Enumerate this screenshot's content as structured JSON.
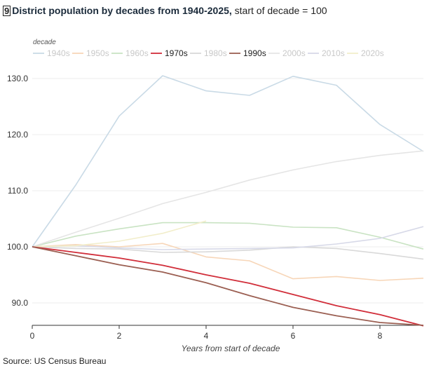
{
  "title": {
    "badge": "9",
    "bold": "District population by decades from 1940-2025,",
    "rest": " start of decade = 100"
  },
  "source": "Source: US Census Bureau",
  "chart_data": {
    "type": "line",
    "title": "District population by decades from 1940-2025, start of decade = 100",
    "xlabel": "Years from start of decade",
    "ylabel": "",
    "legend_title": "decade",
    "legend_placement": "top-left",
    "grid": true,
    "xlim": [
      0,
      9
    ],
    "ylim": [
      86,
      132
    ],
    "xticks": [
      0,
      2,
      4,
      6,
      8
    ],
    "xtick_labels": [
      "0",
      "2",
      "4",
      "6",
      "8"
    ],
    "yticks": [
      90,
      100,
      110,
      120,
      130
    ],
    "ytick_labels": [
      "90.0",
      "100.0",
      "110.0",
      "120.0",
      "130.0"
    ],
    "series": [
      {
        "name": "1940s",
        "color": "#c9dae6",
        "highlight": false,
        "x": [
          0,
          1,
          2,
          3,
          4,
          5,
          6,
          7,
          8,
          9
        ],
        "y": [
          100,
          111,
          123.3,
          130.5,
          127.8,
          127,
          130.4,
          128.8,
          121.8,
          117
        ]
      },
      {
        "name": "1950s",
        "color": "#f7d6b8",
        "highlight": false,
        "x": [
          0,
          1,
          2,
          3,
          4,
          5,
          6,
          7,
          8,
          9
        ],
        "y": [
          100,
          100.4,
          100,
          100.6,
          98.2,
          97.5,
          94.3,
          94.7,
          94,
          94.4
        ]
      },
      {
        "name": "1960s",
        "color": "#c9e3c3",
        "highlight": false,
        "x": [
          0,
          1,
          2,
          3,
          4,
          5,
          6,
          7,
          8,
          9
        ],
        "y": [
          100,
          101.9,
          103.2,
          104.3,
          104.3,
          104.2,
          103.5,
          103.4,
          101.7,
          99.6
        ]
      },
      {
        "name": "1970s",
        "color": "#d12e3a",
        "highlight": true,
        "x": [
          0,
          1,
          2,
          3,
          4,
          5,
          6,
          7,
          8,
          9
        ],
        "y": [
          100,
          99,
          98,
          96.7,
          95,
          93.5,
          91.5,
          89.5,
          87.9,
          85.9
        ]
      },
      {
        "name": "1980s",
        "color": "#d9d9d9",
        "highlight": false,
        "x": [
          0,
          1,
          2,
          3,
          4,
          5,
          6,
          7,
          8,
          9
        ],
        "y": [
          100,
          99.7,
          99.6,
          99,
          99.1,
          99.4,
          100,
          99.7,
          98.8,
          97.8
        ]
      },
      {
        "name": "1990s",
        "color": "#9b5f52",
        "highlight": true,
        "x": [
          0,
          1,
          2,
          3,
          4,
          5,
          6,
          7,
          8,
          9
        ],
        "y": [
          100,
          98.4,
          96.8,
          95.5,
          93.6,
          91.3,
          89.2,
          87.7,
          86.5,
          86
        ]
      },
      {
        "name": "2000s",
        "color": "#e5e5e5",
        "highlight": false,
        "x": [
          0,
          1,
          2,
          3,
          4,
          5,
          6,
          7,
          8,
          9
        ],
        "y": [
          100,
          102.6,
          105.1,
          107.7,
          109.7,
          111.9,
          113.7,
          115.2,
          116.3,
          117.1
        ]
      },
      {
        "name": "2010s",
        "color": "#d7d9e8",
        "highlight": false,
        "x": [
          0,
          1,
          2,
          3,
          4,
          5,
          6,
          7,
          8,
          9
        ],
        "y": [
          100,
          100.2,
          99.8,
          99.5,
          99.6,
          99.7,
          99.8,
          100.5,
          101.5,
          103.6
        ]
      },
      {
        "name": "2020s",
        "color": "#f2eecb",
        "highlight": false,
        "x": [
          0,
          1,
          2,
          3,
          4
        ],
        "y": [
          100,
          100.2,
          101,
          102.4,
          104.6
        ]
      }
    ]
  }
}
